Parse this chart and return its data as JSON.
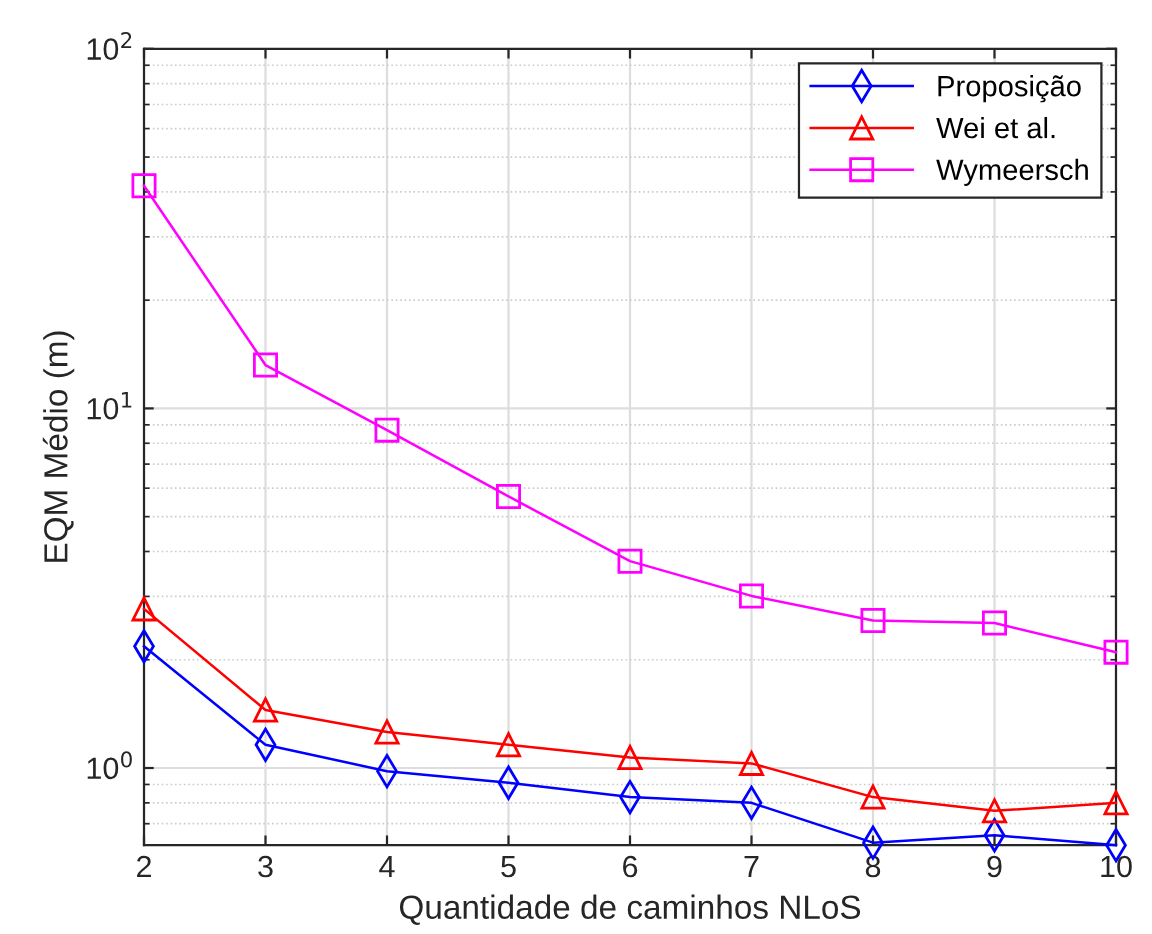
{
  "chart_data": {
    "type": "line",
    "xlabel": "Quantidade de caminhos NLoS",
    "ylabel": "EQM Médio (m)",
    "x": [
      2,
      3,
      4,
      5,
      6,
      7,
      8,
      9,
      10
    ],
    "series": [
      {
        "name": "Proposição",
        "color": "#0000ff",
        "marker": "diamond",
        "values": [
          2.18,
          1.16,
          0.98,
          0.91,
          0.83,
          0.8,
          0.62,
          0.65,
          0.61
        ]
      },
      {
        "name": "Wei et al.",
        "color": "#ff0000",
        "marker": "triangle",
        "values": [
          2.77,
          1.45,
          1.26,
          1.16,
          1.07,
          1.03,
          0.83,
          0.76,
          0.8
        ]
      },
      {
        "name": "Wymeersch",
        "color": "#ff00ff",
        "marker": "square",
        "values": [
          41.6,
          13.2,
          8.7,
          5.69,
          3.76,
          3.01,
          2.57,
          2.53,
          2.1
        ]
      }
    ],
    "log": "y",
    "xlim": [
      2,
      10
    ],
    "xticks": [
      2,
      3,
      4,
      5,
      6,
      7,
      8,
      9,
      10
    ],
    "ylim": [
      0.61,
      100
    ],
    "yticks": [
      {
        "value": 1,
        "label": "10$^{0}$"
      },
      {
        "value": 10,
        "label": "10$^{1}$"
      },
      {
        "value": 100,
        "label": "10$^{2}$"
      }
    ],
    "grid": true,
    "legend": "top right",
    "line_style": "solid"
  }
}
